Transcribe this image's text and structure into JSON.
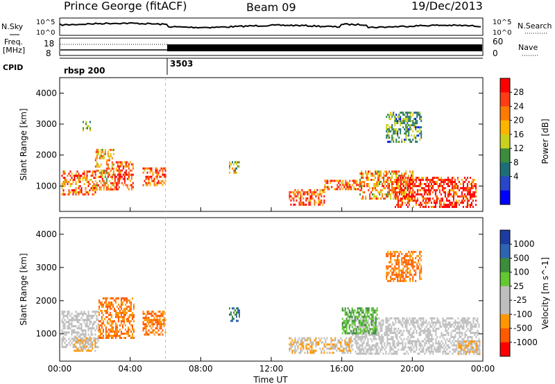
{
  "header": {
    "station": "Prince George (fitACF)",
    "beam": "Beam 09",
    "date": "19/Dec/2013"
  },
  "top_panels": {
    "nsky_label": "N.Sky",
    "nsearch_label": "N.Search",
    "nave_label": "Nave",
    "freq_label_line1": "Freq.",
    "freq_label_line2": "[MHz]",
    "cpid_label": "CPID",
    "log_scale_top": "10^5",
    "log_scale_bottom": "10^0",
    "freq_top": "18",
    "freq_bottom": "8",
    "nave_top": "60",
    "nave_bottom": "0",
    "cpid_segments": [
      "rbsp 200",
      "3503"
    ]
  },
  "chart_data": [
    {
      "type": "heatmap",
      "title": "Power",
      "xlabel": "",
      "ylabel": "Slant Range [km]",
      "xlim": [
        0,
        24
      ],
      "ylim": [
        180,
        4500
      ],
      "x_ticks": [
        "00:00",
        "04:00",
        "08:00",
        "12:00",
        "16:00",
        "20:00",
        "00:00"
      ],
      "y_ticks": [
        "1000",
        "2000",
        "3000",
        "4000"
      ],
      "colorbar_label": "Power [dB]",
      "colorbar_ticks": [
        "28",
        "24",
        "20",
        "16",
        "12",
        "8",
        "4"
      ],
      "colorbar_colors": [
        "#ff0000",
        "#ff3c14",
        "#ff7a00",
        "#ffb400",
        "#c8d21e",
        "#3c8c3c",
        "#1e6e78",
        "#2846c8",
        "#0000ff"
      ],
      "blobs": [
        {
          "t0": 0.1,
          "t1": 2.0,
          "r0": 700,
          "r1": 1500,
          "value": 24
        },
        {
          "t0": 2.0,
          "t1": 3.1,
          "r0": 900,
          "r1": 2200,
          "value": 20
        },
        {
          "t0": 3.1,
          "t1": 4.2,
          "r0": 900,
          "r1": 1800,
          "value": 27
        },
        {
          "t0": 4.7,
          "t1": 6.0,
          "r0": 1000,
          "r1": 1600,
          "value": 26
        },
        {
          "t0": 1.3,
          "t1": 1.7,
          "r0": 2800,
          "r1": 3100,
          "value": 12
        },
        {
          "t0": 9.6,
          "t1": 10.2,
          "r0": 1400,
          "r1": 1800,
          "value": 14
        },
        {
          "t0": 13.0,
          "t1": 15.0,
          "r0": 400,
          "r1": 900,
          "value": 25
        },
        {
          "t0": 15.0,
          "t1": 17.0,
          "r0": 900,
          "r1": 1200,
          "value": 24
        },
        {
          "t0": 17.0,
          "t1": 20.0,
          "r0": 600,
          "r1": 1500,
          "value": 20
        },
        {
          "t0": 19.0,
          "t1": 23.6,
          "r0": 300,
          "r1": 1300,
          "value": 28
        },
        {
          "t0": 18.5,
          "t1": 20.5,
          "r0": 2400,
          "r1": 3400,
          "value": 10
        }
      ]
    },
    {
      "type": "heatmap",
      "title": "Velocity",
      "xlabel": "Time UT",
      "ylabel": "Slant Range [km]",
      "xlim": [
        0,
        24
      ],
      "ylim": [
        180,
        4500
      ],
      "x_ticks": [
        "00:00",
        "04:00",
        "08:00",
        "12:00",
        "16:00",
        "20:00",
        "00:00"
      ],
      "y_ticks": [
        "1000",
        "2000",
        "3000",
        "4000"
      ],
      "colorbar_label": "Velocity [m s^-1]",
      "colorbar_ticks": [
        "1000",
        "500",
        "100",
        "25",
        "-25",
        "-100",
        "-500",
        "-1000"
      ],
      "colorbar_colors": [
        "#1e3ca0",
        "#2d64b4",
        "#3c8c3c",
        "#64c832",
        "#bebebe",
        "#bebebe",
        "#ff9600",
        "#ff5a00",
        "#ff0000"
      ],
      "blobs": [
        {
          "t0": 0.1,
          "t1": 2.2,
          "r0": 600,
          "r1": 1700,
          "value": -25
        },
        {
          "t0": 2.2,
          "t1": 4.2,
          "r0": 900,
          "r1": 2100,
          "value": -500
        },
        {
          "t0": 4.7,
          "t1": 6.0,
          "r0": 1000,
          "r1": 1700,
          "value": -500
        },
        {
          "t0": 0.8,
          "t1": 2.0,
          "r0": 500,
          "r1": 900,
          "value": -100
        },
        {
          "t0": 9.6,
          "t1": 10.2,
          "r0": 1400,
          "r1": 1800,
          "value": 500
        },
        {
          "t0": 13.0,
          "t1": 16.5,
          "r0": 400,
          "r1": 900,
          "value": -100
        },
        {
          "t0": 16.5,
          "t1": 23.8,
          "r0": 400,
          "r1": 1500,
          "value": -25
        },
        {
          "t0": 22.6,
          "t1": 23.8,
          "r0": 400,
          "r1": 800,
          "value": -100
        },
        {
          "t0": 16.0,
          "t1": 18.0,
          "r0": 1000,
          "r1": 1800,
          "value": 100
        },
        {
          "t0": 18.5,
          "t1": 20.5,
          "r0": 2600,
          "r1": 3500,
          "value": -500
        }
      ]
    }
  ]
}
